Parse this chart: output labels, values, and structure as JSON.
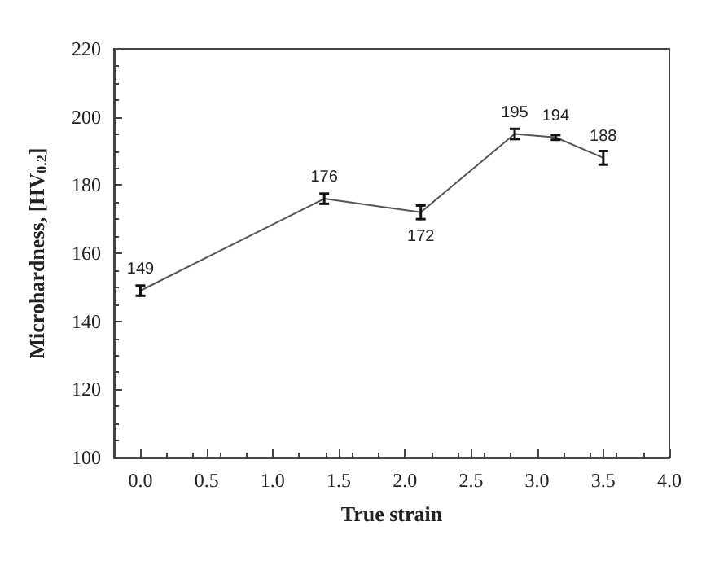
{
  "chart_data": {
    "type": "line",
    "xlabel": "True strain",
    "ylabel": "Microhardness, [HV$_{0.2}$]",
    "x": [
      0,
      1.39,
      2.12,
      2.83,
      3.14,
      3.5
    ],
    "series": [
      {
        "color": "#555555",
        "values": [
          149,
          176,
          172,
          195,
          194,
          188
        ],
        "errors": [
          1.5,
          1.5,
          2,
          1.5,
          0.7,
          2
        ]
      }
    ],
    "data_labels": true,
    "marker": "none",
    "line_style": "solid",
    "xlim": [
      -0.2,
      4.0
    ],
    "xticks": [
      {
        "value": 0,
        "label": "0.0"
      },
      {
        "value": 0.5,
        "label": "0.5"
      },
      {
        "value": 1,
        "label": "1.0"
      },
      {
        "value": 1.5,
        "label": "1.5"
      },
      {
        "value": 2,
        "label": "2.0"
      },
      {
        "value": 2.5,
        "label": "2.5"
      },
      {
        "value": 3,
        "label": "3.0"
      },
      {
        "value": 3.5,
        "label": "3.5"
      },
      {
        "value": 4,
        "label": "4.0"
      }
    ],
    "ylim": [
      100,
      220
    ],
    "yticks": [
      100,
      120,
      140,
      160,
      180,
      200,
      220
    ]
  }
}
